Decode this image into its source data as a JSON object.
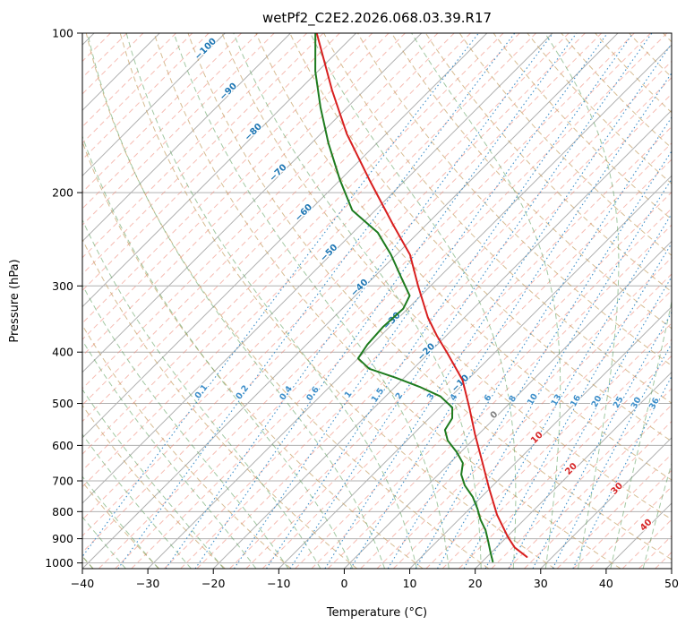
{
  "title": "wetPf2_C2E2.2026.068.03.39.R17",
  "axes": {
    "xlabel": "Temperature (°C)",
    "ylabel": "Pressure (hPa)",
    "x_range": [
      -40,
      50
    ],
    "p_top": 100,
    "p_bottom": 1025,
    "x_ticks": [
      {
        "v": -40,
        "label": "−40"
      },
      {
        "v": -30,
        "label": "−30"
      },
      {
        "v": -20,
        "label": "−20"
      },
      {
        "v": -10,
        "label": "−10"
      },
      {
        "v": 0,
        "label": "0"
      },
      {
        "v": 10,
        "label": "10"
      },
      {
        "v": 20,
        "label": "20"
      },
      {
        "v": 30,
        "label": "30"
      },
      {
        "v": 40,
        "label": "40"
      },
      {
        "v": 50,
        "label": "50"
      }
    ],
    "y_ticks": [
      {
        "v": 100,
        "label": "100"
      },
      {
        "v": 200,
        "label": "200"
      },
      {
        "v": 300,
        "label": "300"
      },
      {
        "v": 400,
        "label": "400"
      },
      {
        "v": 500,
        "label": "500"
      },
      {
        "v": 600,
        "label": "600"
      },
      {
        "v": 700,
        "label": "700"
      },
      {
        "v": 800,
        "label": "800"
      },
      {
        "v": 900,
        "label": "900"
      },
      {
        "v": 1000,
        "label": "1000"
      }
    ]
  },
  "style": {
    "temperature_color": "#d81f1f",
    "dewpoint_color": "#1e7b1e",
    "grid_color": "#b0b0b0",
    "frame_color": "#000000",
    "minor_isotherm_color": "#ef8575",
    "dry_adiabat_color": "#c09858",
    "moist_adiabat_color": "#559a55",
    "mixing_ratio_color": "#3d8ec9",
    "cold_label_color": "#1f77b4",
    "zero_label_color": "#808080",
    "warm_label_color": "#d62728"
  },
  "chart_data": {
    "type": "line",
    "subtype": "skewt_log_p",
    "title": "wetPf2_C2E2.2026.068.03.39.R17",
    "xlabel": "Temperature (°C)",
    "ylabel": "Pressure (hPa)",
    "x_range_c": [
      -40,
      50
    ],
    "pressure_range_hpa": [
      100,
      1025
    ],
    "skew_deg": 45,
    "grid": "on",
    "series": [
      {
        "name": "temperature",
        "color_key": "temperature_color",
        "points_p_t": [
          [
            100,
            -86
          ],
          [
            128,
            -75
          ],
          [
            155,
            -66
          ],
          [
            189,
            -55.6
          ],
          [
            229,
            -45.3
          ],
          [
            262,
            -37.9
          ],
          [
            300,
            -31.9
          ],
          [
            344,
            -25.6
          ],
          [
            372,
            -21.5
          ],
          [
            403,
            -17
          ],
          [
            452,
            -10.7
          ],
          [
            509,
            -5.5
          ],
          [
            571,
            -0.6
          ],
          [
            642,
            4.6
          ],
          [
            722,
            9.8
          ],
          [
            811,
            15.1
          ],
          [
            894,
            20.2
          ],
          [
            935,
            22.8
          ],
          [
            974,
            26.1
          ]
        ]
      },
      {
        "name": "dewpoint",
        "color_key": "dewpoint_color",
        "points_p_t": [
          [
            100,
            -86.2
          ],
          [
            118,
            -80.4
          ],
          [
            138,
            -74.1
          ],
          [
            161,
            -67.5
          ],
          [
            189,
            -60.1
          ],
          [
            216,
            -53.5
          ],
          [
            238,
            -46.2
          ],
          [
            262,
            -40.8
          ],
          [
            289,
            -35.8
          ],
          [
            313,
            -31.7
          ],
          [
            331,
            -30.7
          ],
          [
            358,
            -31
          ],
          [
            387,
            -30.7
          ],
          [
            411,
            -30
          ],
          [
            430,
            -26.7
          ],
          [
            447,
            -21.3
          ],
          [
            465,
            -16.3
          ],
          [
            485,
            -11.6
          ],
          [
            509,
            -8.1
          ],
          [
            533,
            -6.5
          ],
          [
            561,
            -5.8
          ],
          [
            587,
            -3.8
          ],
          [
            618,
            -0.6
          ],
          [
            648,
            2
          ],
          [
            681,
            3.5
          ],
          [
            714,
            5.7
          ],
          [
            751,
            8.7
          ],
          [
            790,
            11.2
          ],
          [
            828,
            13.3
          ],
          [
            867,
            15.7
          ],
          [
            912,
            17.9
          ],
          [
            956,
            19.9
          ],
          [
            994,
            21.6
          ]
        ]
      }
    ],
    "isotherm_labels": [
      {
        "label": "−100",
        "value": -100,
        "p": 108,
        "c": "cold"
      },
      {
        "label": "−90",
        "value": -90,
        "p": 130,
        "c": "cold"
      },
      {
        "label": "−80",
        "value": -80,
        "p": 155,
        "c": "cold"
      },
      {
        "label": "−70",
        "value": -70,
        "p": 185,
        "c": "cold"
      },
      {
        "label": "−60",
        "value": -60,
        "p": 220,
        "c": "cold"
      },
      {
        "label": "−50",
        "value": -50,
        "p": 262,
        "c": "cold"
      },
      {
        "label": "−40",
        "value": -40,
        "p": 305,
        "c": "cold"
      },
      {
        "label": "−30",
        "value": -30,
        "p": 352,
        "c": "cold"
      },
      {
        "label": "−20",
        "value": -20,
        "p": 403,
        "c": "cold"
      },
      {
        "label": "−10",
        "value": -10,
        "p": 462,
        "c": "cold"
      },
      {
        "label": "0",
        "value": 0,
        "p": 530,
        "c": "zero"
      },
      {
        "label": "10",
        "value": 10,
        "p": 585,
        "c": "warm"
      },
      {
        "label": "20",
        "value": 20,
        "p": 670,
        "c": "warm"
      },
      {
        "label": "30",
        "value": 30,
        "p": 730,
        "c": "warm"
      },
      {
        "label": "40",
        "value": 40,
        "p": 855,
        "c": "warm"
      }
    ],
    "mixing_ratio_lines_g_kg": [
      0.1,
      0.2,
      0.4,
      0.6,
      1,
      1.5,
      2,
      3,
      4,
      6,
      8,
      10,
      13,
      16,
      20,
      25,
      30,
      36
    ],
    "isotherms_major_c": {
      "start": -120,
      "end": 50,
      "step": 10
    },
    "isotherms_minor_c": {
      "start": -125,
      "end": 47.5,
      "step": 2.5
    },
    "dry_adiabats_c": {
      "start": -40,
      "end": 200,
      "step": 10
    },
    "moist_adiabats_c": {
      "start": -40,
      "end": 45,
      "step": 5
    }
  }
}
